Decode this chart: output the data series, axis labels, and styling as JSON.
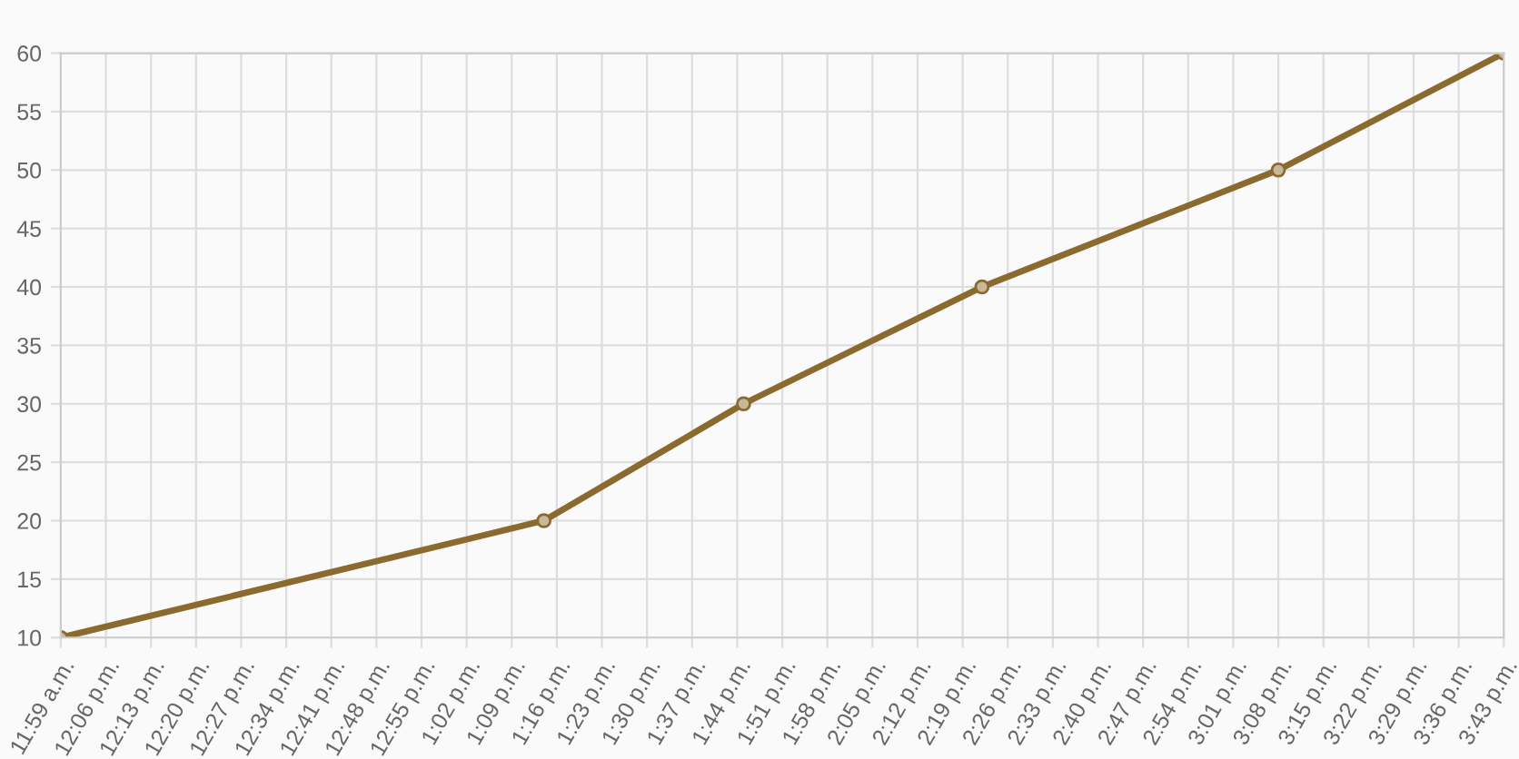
{
  "chart_data": {
    "type": "line",
    "x": [
      11.9833,
      13.2333,
      13.75,
      14.3667,
      15.1333,
      15.7167
    ],
    "series": [
      {
        "color": "#8b6a2f",
        "values": [
          10,
          20,
          30,
          40,
          50,
          60
        ]
      }
    ],
    "xlim": [
      11.9833,
      15.7167
    ],
    "xticks": [
      {
        "value": 11.9833,
        "label": "11:59 a.m."
      },
      {
        "value": 12.1,
        "label": "12:06 p.m."
      },
      {
        "value": 12.2167,
        "label": "12:13 p.m."
      },
      {
        "value": 12.3333,
        "label": "12:20 p.m."
      },
      {
        "value": 12.45,
        "label": "12:27 p.m."
      },
      {
        "value": 12.5667,
        "label": "12:34 p.m."
      },
      {
        "value": 12.6833,
        "label": "12:41 p.m."
      },
      {
        "value": 12.8,
        "label": "12:48 p.m."
      },
      {
        "value": 12.9167,
        "label": "12:55 p.m."
      },
      {
        "value": 13.0333,
        "label": "1:02 p.m."
      },
      {
        "value": 13.15,
        "label": "1:09 p.m."
      },
      {
        "value": 13.2667,
        "label": "1:16 p.m."
      },
      {
        "value": 13.3833,
        "label": "1:23 p.m."
      },
      {
        "value": 13.5,
        "label": "1:30 p.m."
      },
      {
        "value": 13.6167,
        "label": "1:37 p.m."
      },
      {
        "value": 13.7333,
        "label": "1:44 p.m."
      },
      {
        "value": 13.85,
        "label": "1:51 p.m."
      },
      {
        "value": 13.9667,
        "label": "1:58 p.m."
      },
      {
        "value": 14.0833,
        "label": "2:05 p.m."
      },
      {
        "value": 14.2,
        "label": "2:12 p.m."
      },
      {
        "value": 14.3167,
        "label": "2:19 p.m."
      },
      {
        "value": 14.4333,
        "label": "2:26 p.m."
      },
      {
        "value": 14.55,
        "label": "2:33 p.m."
      },
      {
        "value": 14.6667,
        "label": "2:40 p.m."
      },
      {
        "value": 14.7833,
        "label": "2:47 p.m."
      },
      {
        "value": 14.9,
        "label": "2:54 p.m."
      },
      {
        "value": 15.0167,
        "label": "3:01 p.m."
      },
      {
        "value": 15.1333,
        "label": "3:08 p.m."
      },
      {
        "value": 15.25,
        "label": "3:15 p.m."
      },
      {
        "value": 15.3667,
        "label": "3:22 p.m."
      },
      {
        "value": 15.4833,
        "label": "3:29 p.m."
      },
      {
        "value": 15.6,
        "label": "3:36 p.m."
      },
      {
        "value": 15.7167,
        "label": "3:43 p.m."
      }
    ],
    "ylim": [
      10,
      60
    ],
    "yticks": [
      10,
      15,
      20,
      25,
      30,
      35,
      40,
      45,
      50,
      55,
      60
    ],
    "grid": true,
    "marker": "circle",
    "line_style": "solid"
  }
}
